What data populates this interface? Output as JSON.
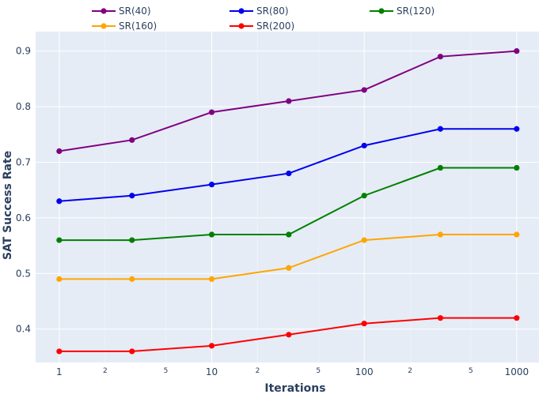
{
  "chart_data": {
    "type": "line",
    "xlabel": "Iterations",
    "ylabel": "SAT Success Rate",
    "x_scale": "log",
    "xlim": [
      0.7,
      1400
    ],
    "ylim": [
      0.34,
      0.935
    ],
    "x_ticks": [
      1,
      10,
      100,
      1000
    ],
    "x_tick_labels": [
      "1",
      "10",
      "100",
      "1000"
    ],
    "x_minor_ticks": [
      2,
      5,
      20,
      50,
      200,
      500
    ],
    "x_minor_labels": [
      "2",
      "5",
      "2",
      "5",
      "2",
      "5"
    ],
    "y_ticks": [
      0.4,
      0.5,
      0.6,
      0.7,
      0.8,
      0.9
    ],
    "y_tick_labels": [
      "0.4",
      "0.5",
      "0.6",
      "0.7",
      "0.8",
      "0.9"
    ],
    "grid": true,
    "legend_position": "top",
    "x": [
      1,
      3,
      10,
      32,
      100,
      316,
      1000
    ],
    "series": [
      {
        "name": "SR(40)",
        "color": "#800080",
        "values": [
          0.72,
          0.74,
          0.79,
          0.81,
          0.83,
          0.89,
          0.9
        ]
      },
      {
        "name": "SR(80)",
        "color": "#0000ee",
        "values": [
          0.63,
          0.64,
          0.66,
          0.68,
          0.73,
          0.76,
          0.76
        ]
      },
      {
        "name": "SR(120)",
        "color": "#008000",
        "values": [
          0.56,
          0.56,
          0.57,
          0.57,
          0.64,
          0.69,
          0.69
        ]
      },
      {
        "name": "SR(160)",
        "color": "#ffa500",
        "values": [
          0.49,
          0.49,
          0.49,
          0.51,
          0.56,
          0.57,
          0.57
        ]
      },
      {
        "name": "SR(200)",
        "color": "#ff0000",
        "values": [
          0.36,
          0.36,
          0.37,
          0.39,
          0.41,
          0.42,
          0.42
        ]
      }
    ]
  }
}
